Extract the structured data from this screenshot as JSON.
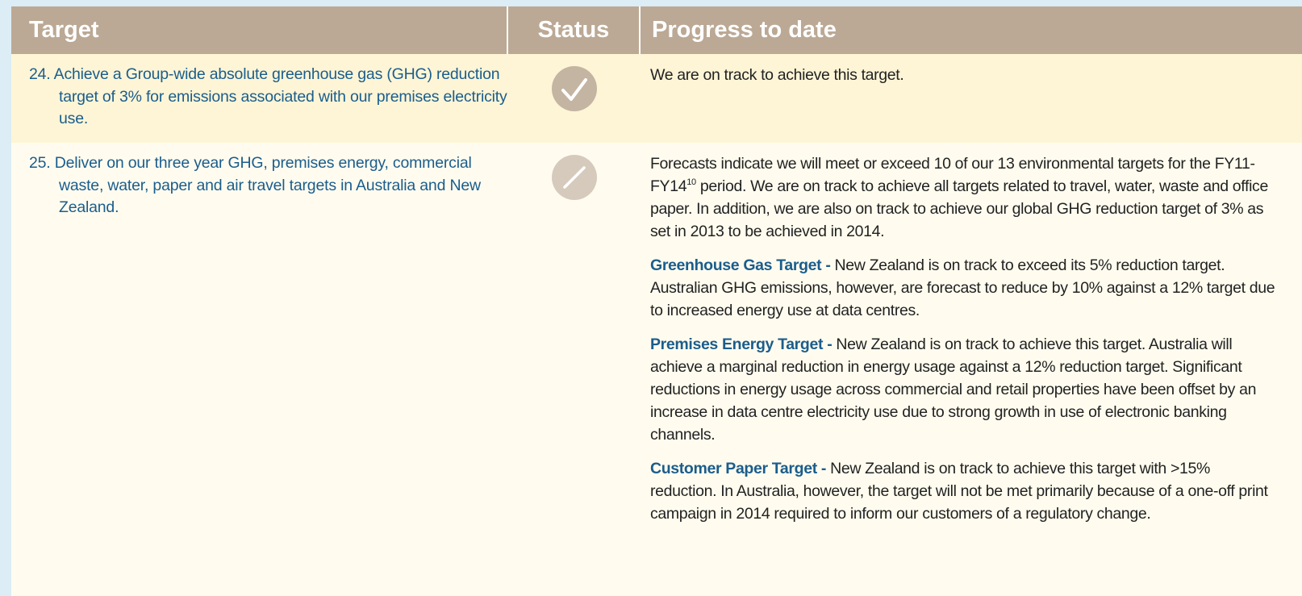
{
  "table": {
    "header": [
      "Target",
      "Status",
      "Progress to date"
    ],
    "rows": [
      {
        "target": "24. Achieve a Group-wide absolute greenhouse gas (GHG) reduction target of 3% for emissions associated with our premises electricity use.",
        "progress": "We are on track to achieve this target."
      },
      {
        "target": "25. Deliver on our three year GHG, premises energy, commercial waste, water, paper and air travel targets in Australia and New Zealand.",
        "intro": [
          "Forecasts indicate we will meet or exceed 10 of our 13 environmental targets for the FY11-FY14",
          "10",
          " period. We are on track to achieve all targets related to travel, water, waste and office paper. In addition, we are also on track to achieve our global GHG reduction target of 3% as set in 2013 to be achieved in 2014."
        ],
        "sections": [
          {
            "label": "Greenhouse Gas Target -",
            "text": " New Zealand is on track to exceed its 5% reduction target. Australian GHG emissions, however, are forecast to reduce by 10% against a 12% target due to increased energy use at data centres."
          },
          {
            "label": "Premises Energy Target -",
            "text": " New Zealand is on track to achieve this target. Australia will achieve a marginal reduction in energy usage against a 12% reduction target. Significant reductions in energy usage across commercial and retail properties have been offset by an increase in data centre electricity use due to strong growth in use of electronic banking channels."
          },
          {
            "label": "Customer Paper Target -",
            "text": " New Zealand is on track to achieve this target with >15% reduction. In Australia, however, the target will not be met primarily because of a one-off print campaign in 2014 required to inform our customers of a regulatory change."
          }
        ]
      }
    ]
  }
}
